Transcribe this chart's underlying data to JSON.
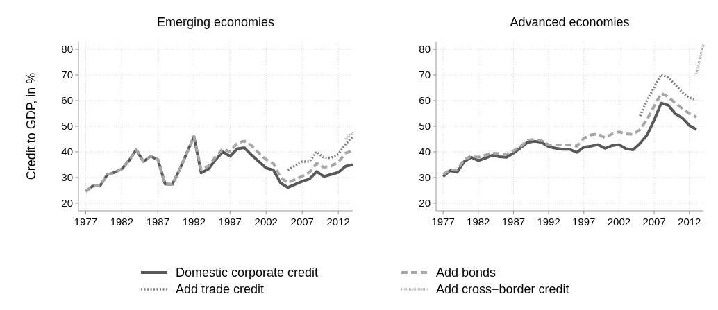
{
  "chart_data": [
    {
      "type": "line",
      "title": "Emerging economies",
      "ylabel": "Credit to GDP, in %",
      "xlim": [
        1976,
        2014
      ],
      "xticks": [
        1977,
        1982,
        1987,
        1992,
        1997,
        2002,
        2007,
        2012
      ],
      "ylim": [
        17,
        83
      ],
      "yticks": [
        20,
        30,
        40,
        50,
        60,
        70,
        80
      ],
      "grid": true,
      "legend": "bottom",
      "series": [
        {
          "name": "Domestic corporate credit",
          "color": "#595959",
          "line_style": "solid",
          "x": [
            1977,
            1978,
            1979,
            1980,
            1981,
            1982,
            1983,
            1984,
            1985,
            1986,
            1987,
            1988,
            1989,
            1990,
            1991,
            1992,
            1993,
            1994,
            1995,
            1996,
            1997,
            1998,
            1999,
            2000,
            2001,
            2002,
            2003,
            2004,
            2005,
            2006,
            2007,
            2008,
            2009,
            2010,
            2011,
            2012,
            2013,
            2014
          ],
          "values": [
            24.6,
            26.7,
            26.8,
            31.1,
            32,
            33.3,
            36.6,
            40.8,
            36.2,
            38.3,
            37,
            27.5,
            27.3,
            33,
            39.5,
            46,
            31.8,
            33.3,
            37,
            40,
            38.3,
            41.2,
            41.6,
            38.7,
            36.2,
            33.7,
            32.9,
            27.9,
            26.1,
            27.3,
            28.5,
            29.4,
            32.3,
            30.4,
            31.2,
            32,
            34.4,
            35
          ]
        },
        {
          "name": "Add bonds",
          "color": "#a6a6a6",
          "line_style": "dashed",
          "x": [
            1977,
            1978,
            1979,
            1980,
            1981,
            1982,
            1983,
            1984,
            1985,
            1986,
            1987,
            1988,
            1989,
            1990,
            1991,
            1992,
            1993,
            1994,
            1995,
            1996,
            1997,
            1998,
            1999,
            2000,
            2001,
            2002,
            2003,
            2004,
            2005,
            2006,
            2007,
            2008,
            2009,
            2010,
            2011,
            2012,
            2013,
            2014
          ],
          "values": [
            24.6,
            26.7,
            26.8,
            31.1,
            32,
            33.3,
            36.6,
            40.8,
            36.2,
            38.3,
            37,
            27.5,
            27.3,
            33,
            39.5,
            46,
            33,
            34.5,
            38,
            41.2,
            40,
            43.5,
            44.2,
            42.4,
            39.5,
            37,
            35.5,
            30,
            28,
            29.2,
            30.5,
            32,
            35.5,
            34,
            34.5,
            36,
            39.5,
            40.5
          ]
        },
        {
          "name": "Add trade credit",
          "color": "#7f7f7f",
          "line_style": "dotted",
          "x": [
            2005,
            2006,
            2007,
            2008,
            2009,
            2010,
            2011,
            2012,
            2013,
            2014
          ],
          "values": [
            32.9,
            34.6,
            36.2,
            36.2,
            40,
            37.7,
            37.7,
            39.1,
            43,
            46
          ]
        },
        {
          "name": "Add cross−border credit",
          "color": "#a6a6a6",
          "line_style": "finedotted",
          "x": [
            2013,
            2014
          ],
          "values": [
            45,
            47.5
          ]
        }
      ]
    },
    {
      "type": "line",
      "title": "Advanced economies",
      "xlim": [
        1976,
        2014
      ],
      "xticks": [
        1977,
        1982,
        1987,
        1992,
        1997,
        2002,
        2007,
        2012
      ],
      "ylim": [
        17,
        83
      ],
      "yticks": [
        20,
        30,
        40,
        50,
        60,
        70,
        80
      ],
      "grid": true,
      "series": [
        {
          "color": "#595959",
          "line_style": "solid",
          "x": [
            1977,
            1978,
            1979,
            1980,
            1981,
            1982,
            1983,
            1984,
            1985,
            1986,
            1987,
            1988,
            1989,
            1990,
            1991,
            1992,
            1993,
            1994,
            1995,
            1996,
            1997,
            1998,
            1999,
            2000,
            2001,
            2002,
            2003,
            2004,
            2005,
            2006,
            2007,
            2008,
            2009,
            2010,
            2011,
            2012,
            2013
          ],
          "values": [
            30.4,
            32.7,
            32.1,
            36.2,
            37.9,
            36.6,
            37.5,
            38.7,
            38.1,
            37.9,
            39.5,
            41.6,
            43.7,
            44.1,
            43.7,
            42,
            41.4,
            41,
            41,
            39.8,
            41.8,
            42.2,
            42.8,
            41.4,
            42.4,
            42.8,
            41.2,
            40.8,
            43.3,
            46.6,
            52.4,
            59,
            58.2,
            54.9,
            53.2,
            50.3,
            48.7
          ]
        },
        {
          "color": "#a6a6a6",
          "line_style": "dashed",
          "x": [
            1977,
            1978,
            1979,
            1980,
            1981,
            1982,
            1983,
            1984,
            1985,
            1986,
            1987,
            1988,
            1989,
            1990,
            1991,
            1992,
            1993,
            1994,
            1995,
            1996,
            1997,
            1998,
            1999,
            2000,
            2001,
            2002,
            2003,
            2004,
            2005,
            2006,
            2007,
            2008,
            2009,
            2010,
            2011,
            2012,
            2013
          ],
          "values": [
            31.2,
            33,
            32.9,
            37,
            38.3,
            37.9,
            38.7,
            39.5,
            39.3,
            39.1,
            40.4,
            42,
            44.5,
            44.9,
            44.3,
            42.7,
            42.7,
            42.7,
            42.7,
            42.2,
            45.3,
            46.6,
            47,
            45.5,
            47,
            47.8,
            47,
            46.8,
            48.7,
            52.8,
            57.8,
            62.8,
            61.5,
            59,
            56.9,
            54.9,
            53.6
          ]
        },
        {
          "color": "#7f7f7f",
          "line_style": "dotted",
          "x": [
            2005,
            2006,
            2007,
            2008,
            2009,
            2010,
            2011,
            2012,
            2013
          ],
          "values": [
            54,
            60.2,
            65.2,
            70.2,
            69,
            66.1,
            63.2,
            61.1,
            60.3
          ]
        },
        {
          "color": "#a6a6a6",
          "line_style": "finedotted",
          "x": [
            2013,
            2014
          ],
          "values": [
            70.5,
            82
          ]
        }
      ]
    }
  ]
}
